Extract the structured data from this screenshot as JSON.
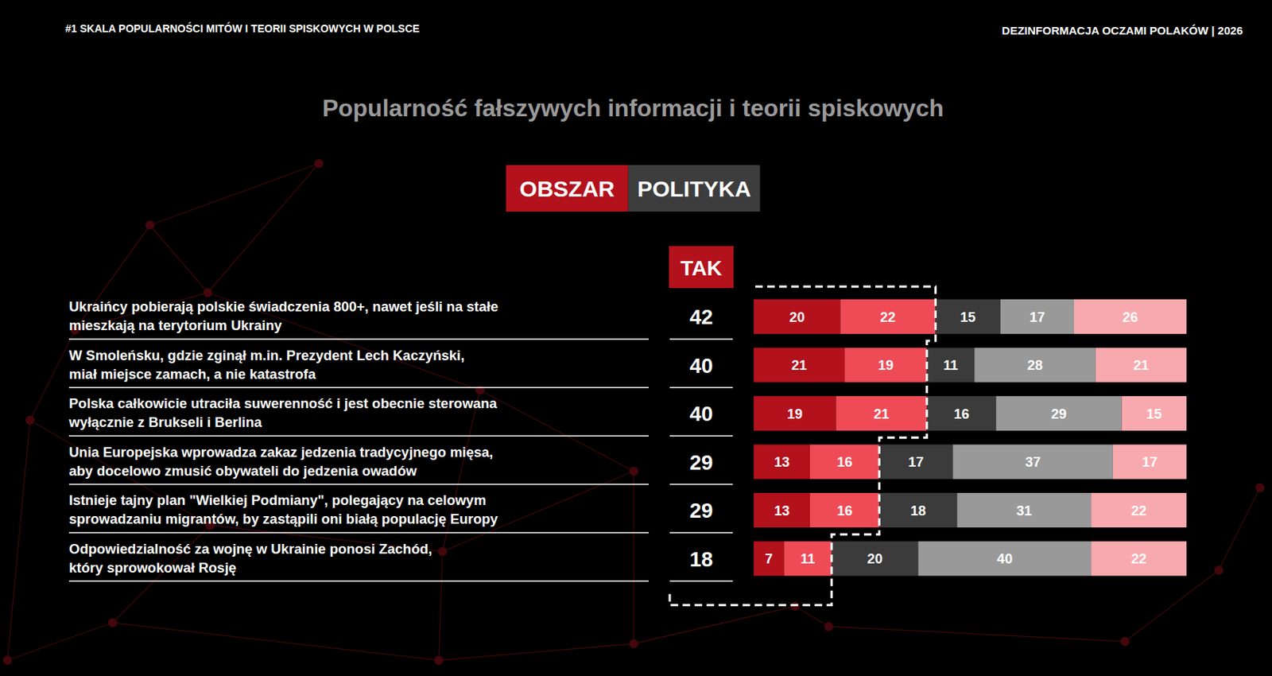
{
  "chart_data": {
    "type": "bar",
    "orientation": "horizontal",
    "stacked": true,
    "data_labels": true,
    "tick_labels": "y",
    "header_left": "#1 SKALA POPULARNOŚCI MITÓW I TEORII SPISKOWYCH W POLSCE",
    "header_right": "DEZINFORMACJA OCZAMI POLAKÓW | 2026",
    "title": "Popularność fałszywych informacji i teorii spiskowych",
    "area_label": "OBSZAR",
    "area": "POLITYKA",
    "totals_label": "TAK",
    "totals": [
      42,
      40,
      40,
      29,
      29,
      18
    ],
    "categories": [
      "Ukraińcy pobierają polskie świadczenia 800+, nawet jeśli na stałe\nmieszkają na terytorium Ukrainy",
      "W Smoleńsku, gdzie zginął m.in. Prezydent Lech Kaczyński,\nmiał miejsce zamach, a nie katastrofa",
      "Polska całkowicie utraciła suwerenność i jest obecnie sterowana\nwyłącznie z Brukseli i Berlina",
      "Unia Europejska wprowadza zakaz jedzenia tradycyjnego mięsa,\naby docelowo zmusić obywateli do jedzenia owadów",
      "Istnieje tajny plan \"Wielkiej Podmiany\", polegający na celowym\nsprowadzaniu migrantów, by zastąpili oni białą populację Europy",
      "Odpowiedzialność za wojnę w Ukrainie ponosi Zachód,\nktóry sprowokował Rosję"
    ],
    "xlim": [
      0,
      100
    ],
    "series": [
      {
        "color": "#b3111c",
        "values": [
          20,
          21,
          19,
          13,
          13,
          7
        ]
      },
      {
        "color": "#ee4b56",
        "values": [
          22,
          19,
          21,
          16,
          16,
          11
        ]
      },
      {
        "color": "#3b3b3b",
        "values": [
          15,
          11,
          16,
          17,
          18,
          20
        ]
      },
      {
        "color": "#999999",
        "values": [
          17,
          28,
          29,
          37,
          31,
          40
        ]
      },
      {
        "color": "#f8a9ae",
        "values": [
          26,
          21,
          15,
          17,
          22,
          22
        ]
      }
    ]
  }
}
